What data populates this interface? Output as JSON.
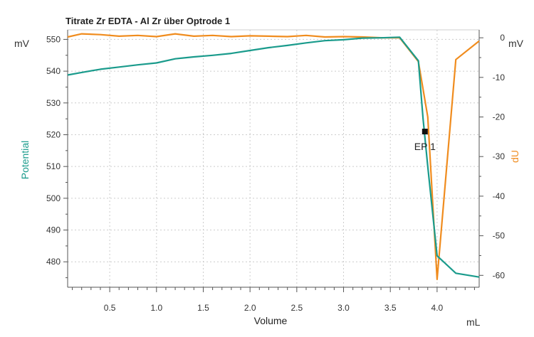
{
  "chart_data": {
    "type": "line",
    "title": "Titrate Zr EDTA - Al Zr über Optrode  1",
    "xlabel": "Volume",
    "xunit": "mL",
    "ylabel_left": "Potential",
    "yunit_left": "mV",
    "ylabel_right": "dU",
    "yunit_right": "mV",
    "xlim": [
      0.05,
      4.45
    ],
    "ylim_left": [
      472,
      553
    ],
    "ylim_right": [
      -63,
      2
    ],
    "x_ticks": [
      "0.5",
      "1.0",
      "1.5",
      "2.0",
      "2.5",
      "3.0",
      "3.5",
      "4.0"
    ],
    "y_left_ticks": [
      "480",
      "490",
      "500",
      "510",
      "520",
      "530",
      "540",
      "550"
    ],
    "y_right_ticks": [
      "0",
      "-10",
      "-20",
      "-30",
      "-40",
      "-50",
      "-60"
    ],
    "grid": true,
    "colors": {
      "potential": "#1a9b8c",
      "du": "#f08c1e"
    },
    "series": [
      {
        "name": "Potential",
        "axis": "left",
        "x": [
          0.05,
          0.2,
          0.4,
          0.6,
          0.8,
          1.0,
          1.2,
          1.4,
          1.6,
          1.8,
          2.0,
          2.2,
          2.4,
          2.6,
          2.8,
          3.0,
          3.2,
          3.4,
          3.6,
          3.8,
          3.85,
          3.9,
          4.0,
          4.2,
          4.45
        ],
        "y": [
          538.8,
          539.6,
          540.6,
          541.3,
          542.0,
          542.6,
          543.9,
          544.5,
          545.0,
          545.6,
          546.5,
          547.4,
          548.1,
          548.9,
          549.6,
          549.9,
          550.4,
          550.5,
          550.7,
          543.3,
          525.0,
          510.0,
          481.9,
          476.4,
          475.2
        ]
      },
      {
        "name": "dU",
        "axis": "right",
        "x": [
          0.05,
          0.2,
          0.4,
          0.6,
          0.8,
          1.0,
          1.2,
          1.4,
          1.6,
          1.8,
          2.0,
          2.2,
          2.4,
          2.6,
          2.8,
          3.0,
          3.2,
          3.4,
          3.6,
          3.8,
          3.9,
          4.0,
          4.2,
          4.45
        ],
        "y": [
          0.2,
          1.0,
          0.8,
          0.4,
          0.6,
          0.3,
          1.0,
          0.4,
          0.6,
          0.3,
          0.5,
          0.4,
          0.3,
          0.6,
          0.2,
          0.3,
          0.2,
          0.0,
          0.0,
          -6.0,
          -20.0,
          -61.0,
          -5.5,
          -0.8
        ]
      }
    ],
    "annotations": [
      {
        "label": "EP 1",
        "x": 3.87,
        "y": 521
      }
    ]
  }
}
